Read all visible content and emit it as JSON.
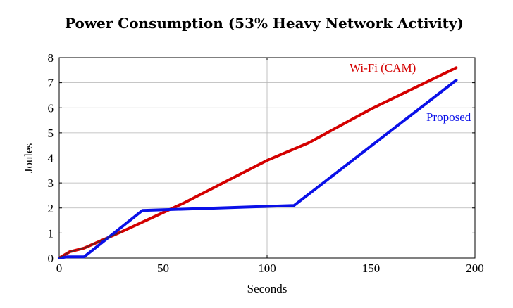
{
  "chart_data": {
    "type": "line",
    "title": "Power Consumption (53% Heavy Network Activity)",
    "xlabel": "Seconds",
    "ylabel": "Joules",
    "xlim": [
      0,
      200
    ],
    "ylim": [
      0,
      8
    ],
    "x_ticks": [
      "0",
      "50",
      "100",
      "150",
      "200"
    ],
    "y_ticks": [
      "0",
      "1",
      "2",
      "3",
      "4",
      "5",
      "6",
      "7",
      "8"
    ],
    "grid": true,
    "series": [
      {
        "name": "Wi-Fi (CAM)",
        "color": "#d40000",
        "points": [
          [
            0,
            0.0
          ],
          [
            5,
            0.25
          ],
          [
            12,
            0.4
          ],
          [
            30,
            1.05
          ],
          [
            60,
            2.2
          ],
          [
            100,
            3.9
          ],
          [
            120,
            4.6
          ],
          [
            150,
            5.95
          ],
          [
            191,
            7.6
          ]
        ]
      },
      {
        "name": "Proposed",
        "color": "#0a10e8",
        "points": [
          [
            0,
            0.0
          ],
          [
            4,
            0.05
          ],
          [
            12,
            0.05
          ],
          [
            40,
            1.9
          ],
          [
            113,
            2.1
          ],
          [
            191,
            7.1
          ]
        ]
      }
    ]
  }
}
